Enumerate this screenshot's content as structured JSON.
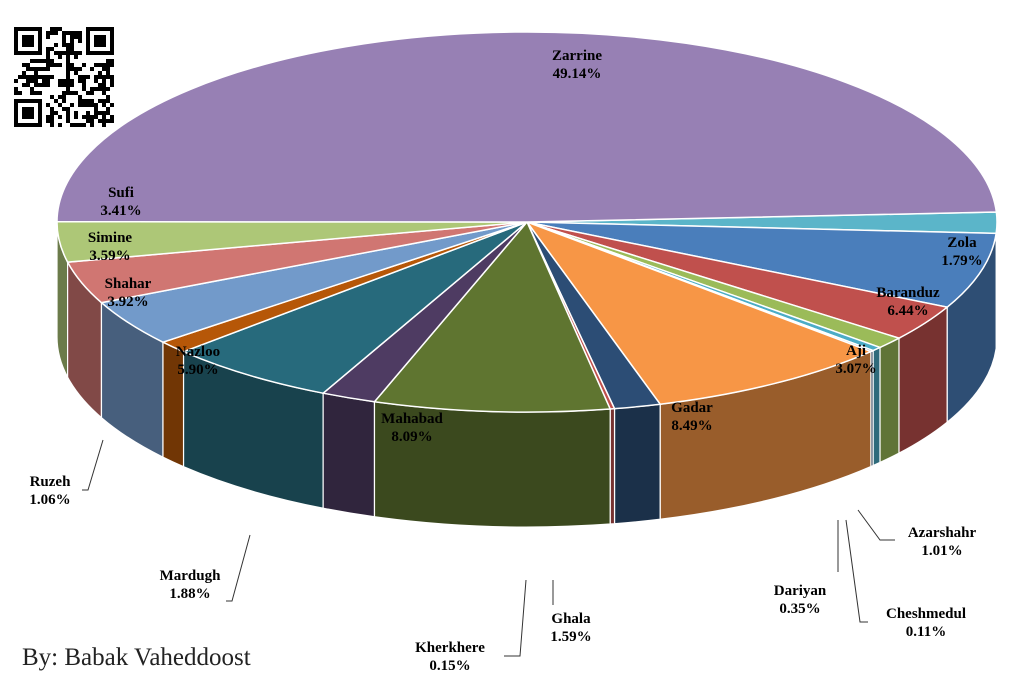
{
  "credit": "By: Babak Vaheddoost",
  "chart_data": {
    "type": "pie",
    "style": "3d-exploded",
    "start_angle_deg": -3,
    "slices": [
      {
        "label": "Zola",
        "pct_text": "1.79%",
        "value": 1.79,
        "color": "#5bb5c9"
      },
      {
        "label": "Baranduz",
        "pct_text": "6.44%",
        "value": 6.44,
        "color": "#4a7ebb"
      },
      {
        "label": "Aji",
        "pct_text": "3.07%",
        "value": 3.07,
        "color": "#c0504d"
      },
      {
        "label": "Azarshahr",
        "pct_text": "1.01%",
        "value": 1.01,
        "color": "#9bbb59"
      },
      {
        "label": "Dariyan",
        "pct_text": "0.35%",
        "value": 0.35,
        "color": "#4bacc6"
      },
      {
        "label": "Cheshmedul",
        "pct_text": "0.11%",
        "value": 0.11,
        "color": "#2c4d75"
      },
      {
        "label": "Gadar",
        "pct_text": "8.49%",
        "value": 8.49,
        "color": "#f79646"
      },
      {
        "label": "Ghala",
        "pct_text": "1.59%",
        "value": 1.59,
        "color": "#2c4d75"
      },
      {
        "label": "Kherkhere",
        "pct_text": "0.15%",
        "value": 0.15,
        "color": "#c0504d"
      },
      {
        "label": "Mahabad",
        "pct_text": "8.09%",
        "value": 8.09,
        "color": "#5f7530"
      },
      {
        "label": "Mardugh",
        "pct_text": "1.88%",
        "value": 1.88,
        "color": "#4e3b62"
      },
      {
        "label": "Nazloo",
        "pct_text": "5.90%",
        "value": 5.9,
        "color": "#276a7c"
      },
      {
        "label": "Ruzeh",
        "pct_text": "1.06%",
        "value": 1.06,
        "color": "#b65708"
      },
      {
        "label": "Shahar",
        "pct_text": "3.92%",
        "value": 3.92,
        "color": "#729aca"
      },
      {
        "label": "Simine",
        "pct_text": "3.59%",
        "value": 3.59,
        "color": "#d07672"
      },
      {
        "label": "Sufi",
        "pct_text": "3.41%",
        "value": 3.41,
        "color": "#adc777"
      },
      {
        "label": "Zarrine",
        "pct_text": "49.14%",
        "value": 49.14,
        "color": "#9780b4"
      }
    ]
  }
}
